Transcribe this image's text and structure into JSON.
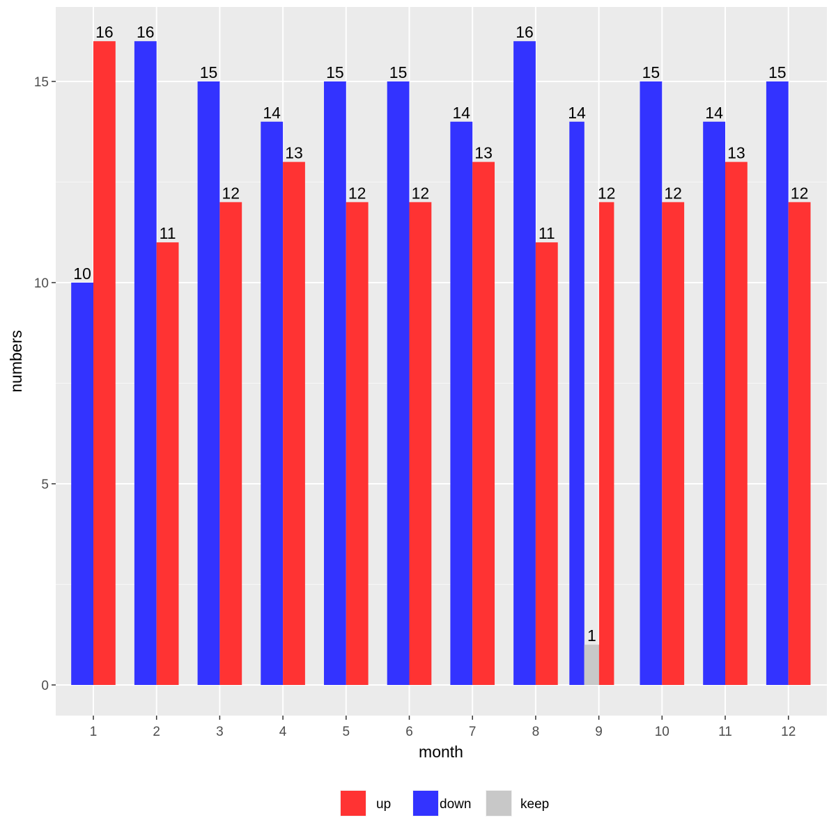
{
  "chart_data": {
    "type": "bar",
    "xlabel": "month",
    "ylabel": "numbers",
    "categories": [
      "1",
      "2",
      "3",
      "4",
      "5",
      "6",
      "7",
      "8",
      "9",
      "10",
      "11",
      "12"
    ],
    "ylim": [
      -0.8,
      16.6
    ],
    "yticks": [
      0,
      5,
      10,
      15
    ],
    "series": [
      {
        "name": "down",
        "color": "#3333ff",
        "values": [
          10,
          16,
          15,
          14,
          15,
          15,
          14,
          16,
          14,
          15,
          14,
          15
        ]
      },
      {
        "name": "up",
        "color": "#ff3333",
        "values": [
          16,
          11,
          12,
          13,
          12,
          12,
          13,
          11,
          12,
          12,
          13,
          12
        ]
      },
      {
        "name": "keep",
        "color": "#c8c8c8",
        "values": [
          null,
          null,
          null,
          null,
          null,
          null,
          null,
          null,
          1,
          null,
          null,
          null
        ]
      }
    ],
    "legend": {
      "position": "bottom",
      "entries": [
        {
          "label": "up",
          "color": "#ff3333"
        },
        {
          "label": "down",
          "color": "#3333ff"
        },
        {
          "label": "keep",
          "color": "#c8c8c8"
        }
      ]
    }
  }
}
